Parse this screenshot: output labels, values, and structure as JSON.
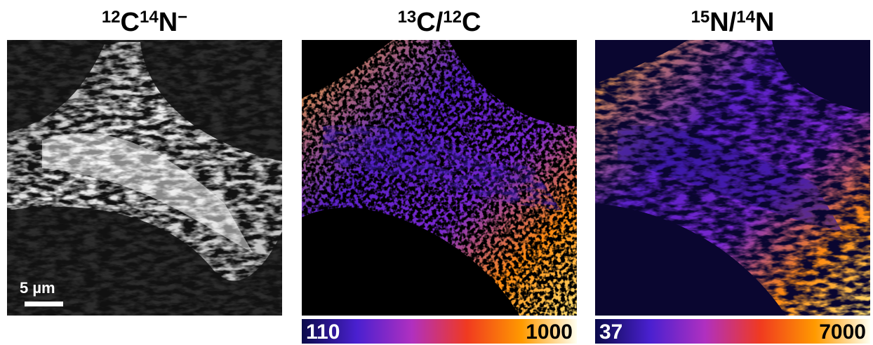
{
  "panels": [
    {
      "title": [
        {
          "sup": "12",
          "base": "C"
        },
        {
          "sup": "14",
          "base": "N"
        },
        {
          "sup": "−"
        }
      ],
      "scale_bar": "5 µm"
    },
    {
      "title": [
        {
          "sup": "13",
          "base": "C/"
        },
        {
          "sup": "12",
          "base": "C"
        }
      ],
      "colorbar": {
        "min": "110",
        "max": "1000"
      }
    },
    {
      "title": [
        {
          "sup": "15",
          "base": "N/"
        },
        {
          "sup": "14",
          "base": "N"
        }
      ],
      "colorbar": {
        "min": "37",
        "max": "7000"
      }
    }
  ]
}
